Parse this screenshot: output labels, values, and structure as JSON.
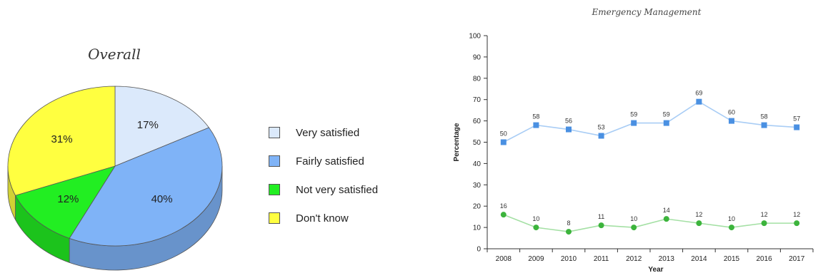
{
  "chart_data": [
    {
      "type": "pie",
      "title": "Overall",
      "unit": "%",
      "slices": [
        {
          "label": "Very satisfied",
          "value": 17,
          "color": "#dbe9fb"
        },
        {
          "label": "Fairly satisfied",
          "value": 40,
          "color": "#7fb3f7"
        },
        {
          "label": "Not very satisfied",
          "value": 12,
          "color": "#22ee22"
        },
        {
          "label": "Don't know",
          "value": 31,
          "color": "#ffff40"
        }
      ],
      "legend_position": "right"
    },
    {
      "type": "line",
      "title": "Emergency Management",
      "xlabel": "Year",
      "ylabel": "Percentage",
      "categories": [
        "2008",
        "2009",
        "2010",
        "2011",
        "2012",
        "2013",
        "2014",
        "2015",
        "2016",
        "2017"
      ],
      "ylim": [
        0,
        100
      ],
      "yticks": [
        "0",
        "10",
        "20",
        "30",
        "40",
        "50",
        "60",
        "70",
        "80",
        "90",
        "100"
      ],
      "series": [
        {
          "values": [
            50,
            58,
            56,
            53,
            59,
            59,
            69,
            60,
            58,
            57
          ],
          "color": "#4a90e2",
          "line_color": "#a9cdf5",
          "marker": "square"
        },
        {
          "values": [
            16,
            10,
            8,
            11,
            10,
            14,
            12,
            10,
            12,
            12
          ],
          "color": "#3cb43c",
          "line_color": "#a4e0a4",
          "marker": "circle"
        }
      ],
      "grid": false
    }
  ]
}
